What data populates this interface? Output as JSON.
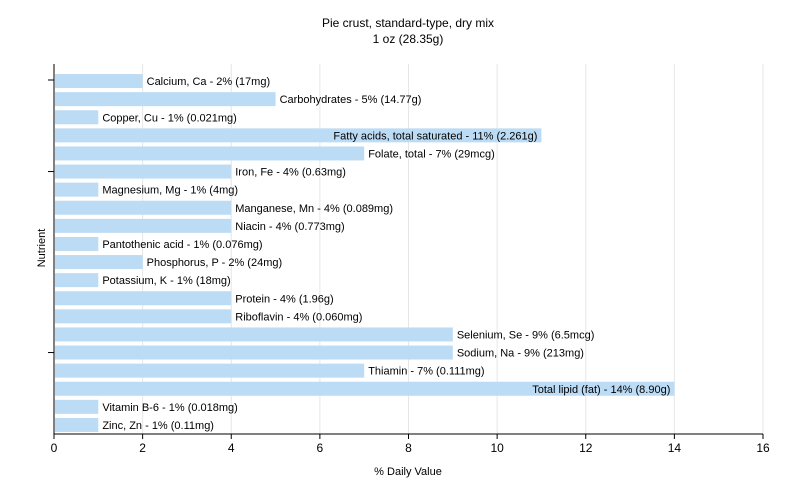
{
  "chart_data": {
    "type": "bar",
    "orientation": "horizontal",
    "title": "Pie crust, standard-type, dry mix",
    "subtitle": "1 oz (28.35g)",
    "xlabel": "% Daily Value",
    "ylabel": "Nutrient",
    "xlim": [
      0,
      16
    ],
    "xticks": [
      0,
      2,
      4,
      6,
      8,
      10,
      12,
      14,
      16
    ],
    "grid": true,
    "colors": {
      "bar": "#bcdcf5",
      "grid": "#e6e6e6",
      "axis": "#000000"
    },
    "categories": [
      "Calcium, Ca",
      "Carbohydrates",
      "Copper, Cu",
      "Fatty acids, total saturated",
      "Folate, total",
      "Iron, Fe",
      "Magnesium, Mg",
      "Manganese, Mn",
      "Niacin",
      "Pantothenic acid",
      "Phosphorus, P",
      "Potassium, K",
      "Protein",
      "Riboflavin",
      "Selenium, Se",
      "Sodium, Na",
      "Thiamin",
      "Total lipid (fat)",
      "Vitamin B-6",
      "Zinc, Zn"
    ],
    "values": [
      2,
      5,
      1,
      11,
      7,
      4,
      1,
      4,
      4,
      1,
      2,
      1,
      4,
      4,
      9,
      9,
      7,
      14,
      1,
      1
    ],
    "labels": [
      "Calcium, Ca - 2% (17mg)",
      "Carbohydrates - 5% (14.77g)",
      "Copper, Cu - 1% (0.021mg)",
      "Fatty acids, total saturated - 11% (2.261g)",
      "Folate, total - 7% (29mcg)",
      "Iron, Fe - 4% (0.63mg)",
      "Magnesium, Mg - 1% (4mg)",
      "Manganese, Mn - 4% (0.089mg)",
      "Niacin - 4% (0.773mg)",
      "Pantothenic acid - 1% (0.076mg)",
      "Phosphorus, P - 2% (24mg)",
      "Potassium, K - 1% (18mg)",
      "Protein - 4% (1.96g)",
      "Riboflavin - 4% (0.060mg)",
      "Selenium, Se - 9% (6.5mcg)",
      "Sodium, Na - 9% (213mg)",
      "Thiamin - 7% (0.111mg)",
      "Total lipid (fat) - 14% (8.90g)",
      "Vitamin B-6 - 1% (0.018mg)",
      "Zinc, Zn - 1% (0.11mg)"
    ]
  }
}
